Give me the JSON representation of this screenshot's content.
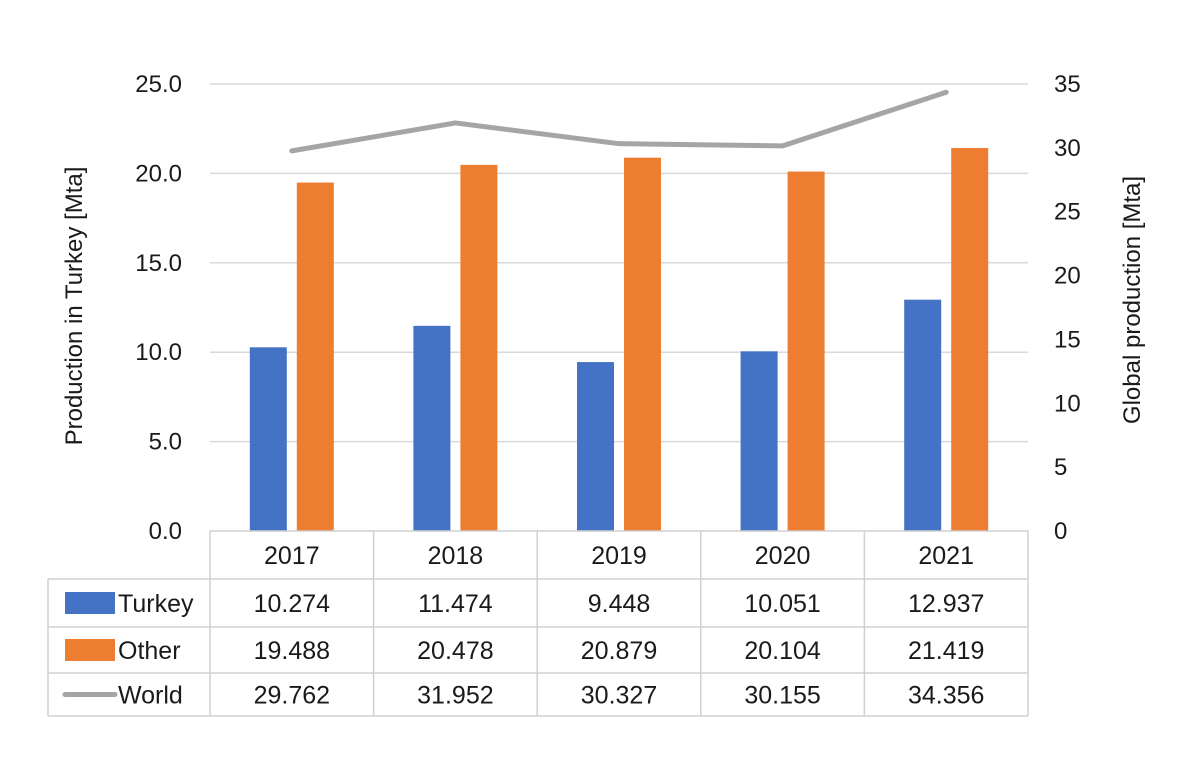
{
  "chart_data": {
    "type": "bar",
    "categories": [
      "2017",
      "2018",
      "2019",
      "2020",
      "2021"
    ],
    "series": [
      {
        "name": "Turkey",
        "type": "bar",
        "axis": "left",
        "color": "#4472c4",
        "values": [
          10.274,
          11.474,
          9.448,
          10.051,
          12.937
        ]
      },
      {
        "name": "Other",
        "type": "bar",
        "axis": "left",
        "color": "#ed7d31",
        "values": [
          19.488,
          20.478,
          20.879,
          20.104,
          21.419
        ]
      },
      {
        "name": "World",
        "type": "line",
        "axis": "right",
        "color": "#a5a5a5",
        "values": [
          29.762,
          31.952,
          30.327,
          30.155,
          34.356
        ]
      }
    ],
    "table_values": {
      "Turkey": [
        "10.274",
        "11.474",
        "9.448",
        "10.051",
        "12.937"
      ],
      "Other": [
        "19.488",
        "20.478",
        "20.879",
        "20.104",
        "21.419"
      ],
      "World": [
        "29.762",
        "31.952",
        "30.327",
        "30.155",
        "34.356"
      ]
    },
    "ylabel": "Production in Turkey [Mta]",
    "y2label": "Global production [Mta]",
    "ylim": [
      0,
      25
    ],
    "y2lim": [
      0,
      35
    ],
    "yticks": [
      "0.0",
      "5.0",
      "10.0",
      "15.0",
      "20.0",
      "25.0"
    ],
    "y2ticks": [
      "0",
      "5",
      "10",
      "15",
      "20",
      "25",
      "30",
      "35"
    ],
    "grid": true,
    "legend": "data-table"
  }
}
